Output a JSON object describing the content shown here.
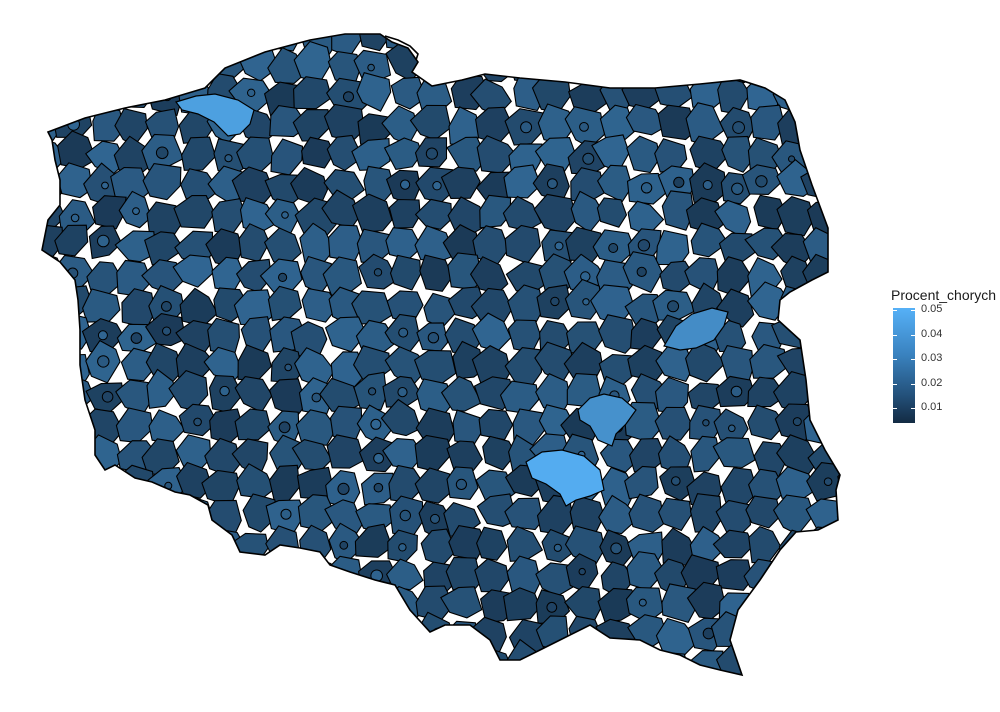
{
  "legend": {
    "title": "Procent_chorych",
    "labels": [
      "0.05",
      "0.04",
      "0.03",
      "0.02",
      "0.01"
    ]
  },
  "colors": {
    "low": "#132b43",
    "mid": "#24527c",
    "high": "#56b1f7",
    "border": "#000000",
    "background": "#ffffff"
  },
  "map": {
    "region_name": "Poland",
    "unit_type": "powiats",
    "scale_min": 0.0,
    "scale_max": 0.055,
    "highlights": [
      {
        "area": "koszalin-area",
        "value": 0.048
      },
      {
        "area": "mazovia-east-area",
        "value": 0.04
      },
      {
        "area": "kielce-north-area",
        "value": 0.042
      },
      {
        "area": "kielce-area",
        "value": 0.053
      }
    ]
  }
}
